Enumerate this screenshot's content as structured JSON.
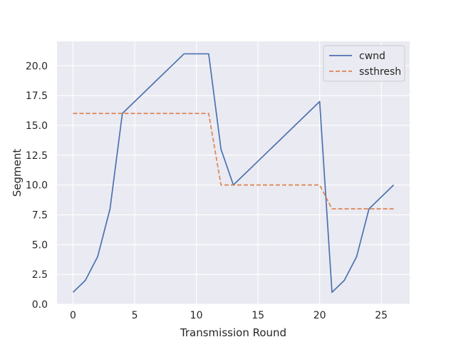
{
  "chart_data": {
    "type": "line",
    "title": "",
    "xlabel": "Transmission Round",
    "ylabel": "Segment",
    "xlim": [
      -1.3,
      27.3
    ],
    "ylim": [
      0,
      22.05
    ],
    "xticks": [
      0,
      5,
      10,
      15,
      20,
      25
    ],
    "yticks": [
      0.0,
      2.5,
      5.0,
      7.5,
      10.0,
      12.5,
      15.0,
      17.5,
      20.0
    ],
    "xtick_labels": [
      "0",
      "5",
      "10",
      "15",
      "20",
      "25"
    ],
    "ytick_labels": [
      "0.0",
      "2.5",
      "5.0",
      "7.5",
      "10.0",
      "12.5",
      "15.0",
      "17.5",
      "20.0"
    ],
    "grid": true,
    "legend_position": "top-right",
    "x": [
      0,
      1,
      2,
      3,
      4,
      5,
      6,
      7,
      8,
      9,
      10,
      11,
      12,
      13,
      14,
      15,
      16,
      17,
      18,
      19,
      20,
      21,
      22,
      23,
      24,
      25,
      26
    ],
    "series": [
      {
        "name": "cwnd",
        "color": "#4c72b0",
        "style": "solid",
        "values": [
          1,
          2,
          4,
          8,
          16,
          17,
          18,
          19,
          20,
          21,
          21,
          21,
          13,
          10,
          11,
          12,
          13,
          14,
          15,
          16,
          17,
          1,
          2,
          4,
          8,
          9,
          10
        ]
      },
      {
        "name": "ssthresh",
        "color": "#dd8452",
        "style": "dashed",
        "values": [
          16,
          16,
          16,
          16,
          16,
          16,
          16,
          16,
          16,
          16,
          16,
          16,
          10,
          10,
          10,
          10,
          10,
          10,
          10,
          10,
          10,
          8,
          8,
          8,
          8,
          8,
          8
        ]
      }
    ]
  }
}
